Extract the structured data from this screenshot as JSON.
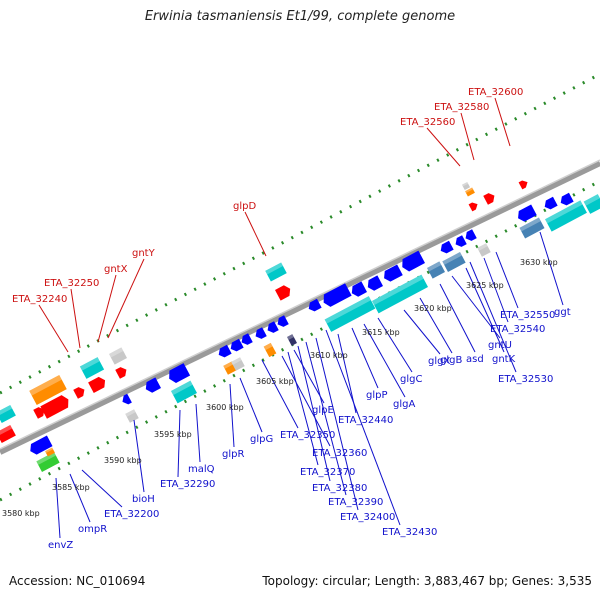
{
  "title": "Erwinia tasmaniensis Et1/99, complete genome",
  "footer": {
    "accession": "Accession: NC_010694",
    "stats": "Topology: circular; Length: 3,883,467 bp; Genes: 3,535"
  },
  "colors": {
    "forward_gene_label": "#cc1111",
    "reverse_gene_label": "#1111cc",
    "backbone": "#888888",
    "tick": "#2a8a2a"
  },
  "position_ticks": [
    "3580 kbp",
    "3585 kbp",
    "3590 kbp",
    "3595 kbp",
    "3600 kbp",
    "3605 kbp",
    "3610 kbp",
    "3615 kbp",
    "3620 kbp",
    "3625 kbp",
    "3630 kbp"
  ],
  "forward_labels": [
    "ETA_32240",
    "ETA_32250",
    "gntX",
    "gntY",
    "glpD",
    "ETA_32560",
    "ETA_32580",
    "ETA_32600"
  ],
  "reverse_labels": [
    "envZ",
    "ompR",
    "ETA_32200",
    "bioH",
    "ETA_32290",
    "malQ",
    "glpR",
    "glpG",
    "ETA_32350",
    "glpE",
    "ETA_32360",
    "ETA_32370",
    "ETA_32380",
    "ETA_32390",
    "ETA_32400",
    "ETA_32430",
    "ETA_32440",
    "glpP",
    "glgA",
    "glgC",
    "glgX",
    "glgB",
    "asd",
    "gntU",
    "gntK",
    "ETA_32530",
    "ETA_32540",
    "ETA_32550",
    "ggt"
  ]
}
